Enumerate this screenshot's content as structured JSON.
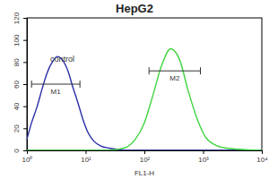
{
  "chart_data": {
    "type": "line",
    "title": "HepG2",
    "x_label": "FL1-H",
    "log": "x",
    "x": [
      1,
      1.2,
      1.5,
      1.8,
      2.2,
      2.7,
      3.3,
      4,
      5,
      6,
      7.5,
      9,
      11,
      14,
      18,
      25,
      35,
      50,
      70,
      100,
      140,
      200,
      280,
      400,
      550,
      800,
      1100,
      1600,
      2500,
      4000,
      10000
    ],
    "series": [
      {
        "color": "#2b2fa8",
        "values": [
          10,
          25,
          40,
          55,
          70,
          80,
          85,
          82,
          72,
          58,
          42,
          28,
          16,
          8,
          4,
          2,
          1,
          0,
          0,
          0,
          0,
          0,
          0,
          0,
          0,
          0,
          0,
          0,
          0,
          0,
          0
        ]
      },
      {
        "color": "#3fd43f",
        "values": [
          0,
          0,
          0,
          0,
          0,
          0,
          0,
          0,
          0,
          0,
          0,
          0,
          0,
          0,
          0,
          0,
          1,
          3,
          10,
          25,
          50,
          78,
          92,
          82,
          55,
          28,
          12,
          5,
          2,
          1,
          0
        ]
      }
    ],
    "xlim": [
      1,
      10000
    ],
    "xticks": [
      {
        "value": 1,
        "label": "10⁰"
      },
      {
        "value": 10,
        "label": "10¹"
      },
      {
        "value": 100,
        "label": "10²"
      },
      {
        "value": 1000,
        "label": "10³"
      },
      {
        "value": 10000,
        "label": "10⁴"
      }
    ],
    "ylim": [
      0,
      120
    ],
    "yticks": [
      0,
      20,
      40,
      60,
      80,
      100,
      120
    ],
    "annotations": [
      "control"
    ],
    "gates": [
      {
        "label": "M1",
        "range": [
          1.2,
          8
        ]
      },
      {
        "label": "M2",
        "range": [
          120,
          900
        ]
      }
    ]
  }
}
